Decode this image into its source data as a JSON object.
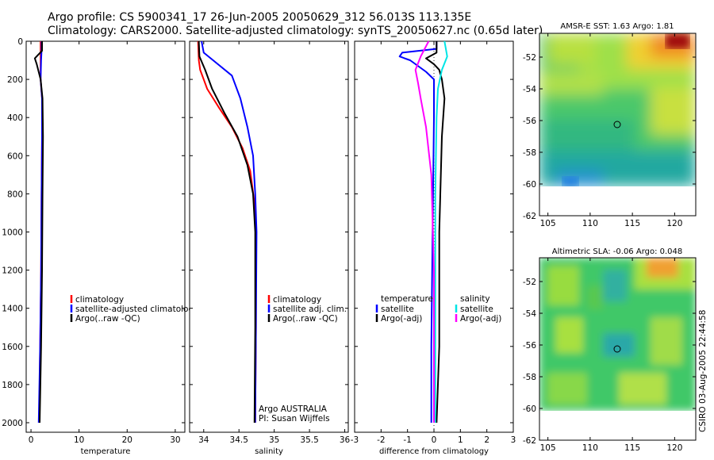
{
  "header": {
    "line1": "Argo profile: CS 5900341_17 26-Jun-2005 20050629_312 56.013S 113.135E",
    "line2": "Climatology: CARS2000. Satellite-adjusted climatology: synTS_20050627.nc (0.65d later)"
  },
  "footer": {
    "stamp": "CSIRO 03-Aug-2005 22:44:58",
    "institution": "Argo AUSTRALIA",
    "pi": "PI: Susan Wijffels"
  },
  "colors": {
    "red": "#ff0000",
    "blue": "#0000ff",
    "black": "#000000",
    "cyan": "#00e5e5",
    "magenta": "#ff00ff"
  },
  "chart_data": [
    {
      "type": "line",
      "id": "temperature",
      "xlabel": "temperature",
      "xlim": [
        -1,
        32
      ],
      "ylim": [
        0,
        2050
      ],
      "xticks": [
        0,
        10,
        20,
        30
      ],
      "yticks": [
        0,
        200,
        400,
        600,
        800,
        1000,
        1200,
        1400,
        1600,
        1800,
        2000
      ],
      "legend": [
        "climatology",
        "satellite-adjusted climatology",
        "Argo(..raw -QC)"
      ],
      "series": [
        {
          "name": "climatology",
          "color": "#ff0000",
          "points": [
            [
              2.0,
              0
            ],
            [
              2.0,
              100
            ],
            [
              2.0,
              200
            ],
            [
              2.3,
              300
            ],
            [
              2.3,
              500
            ],
            [
              2.2,
              800
            ],
            [
              2.1,
              1200
            ],
            [
              1.9,
              1600
            ],
            [
              1.7,
              2000
            ]
          ]
        },
        {
          "name": "satellite-adjusted climatology",
          "color": "#0000ff",
          "points": [
            [
              2.2,
              0
            ],
            [
              2.2,
              50
            ],
            [
              2.1,
              100
            ],
            [
              2.0,
              200
            ],
            [
              2.3,
              300
            ],
            [
              2.3,
              500
            ],
            [
              2.2,
              800
            ],
            [
              2.1,
              1200
            ],
            [
              1.9,
              1600
            ],
            [
              1.6,
              2000
            ]
          ]
        },
        {
          "name": "Argo(..raw -QC)",
          "color": "#000000",
          "points": [
            [
              2.3,
              0
            ],
            [
              2.3,
              50
            ],
            [
              0.8,
              90
            ],
            [
              1.2,
              120
            ],
            [
              2.0,
              200
            ],
            [
              2.4,
              300
            ],
            [
              2.5,
              500
            ],
            [
              2.4,
              800
            ],
            [
              2.3,
              1200
            ],
            [
              2.1,
              1600
            ],
            [
              1.8,
              2000
            ]
          ]
        }
      ]
    },
    {
      "type": "line",
      "id": "salinity",
      "xlabel": "salinity",
      "xlim": [
        33.8,
        36.05
      ],
      "ylim": [
        0,
        2050
      ],
      "xticks": [
        34,
        34.5,
        35,
        35.5,
        36
      ],
      "yticks": [
        0,
        200,
        400,
        600,
        800,
        1000,
        1200,
        1400,
        1600,
        1800,
        2000
      ],
      "legend": [
        "climatology",
        "satellite adj. clim.",
        "Argo(..raw -QC)"
      ],
      "series": [
        {
          "name": "climatology",
          "color": "#ff0000",
          "points": [
            [
              33.92,
              0
            ],
            [
              33.93,
              100
            ],
            [
              33.95,
              150
            ],
            [
              34.05,
              250
            ],
            [
              34.22,
              350
            ],
            [
              34.4,
              450
            ],
            [
              34.55,
              560
            ],
            [
              34.66,
              680
            ],
            [
              34.72,
              850
            ],
            [
              34.74,
              1000
            ],
            [
              34.74,
              1500
            ],
            [
              34.73,
              2000
            ]
          ]
        },
        {
          "name": "satellite adj. clim.",
          "color": "#0000ff",
          "points": [
            [
              33.97,
              0
            ],
            [
              34.0,
              60
            ],
            [
              34.2,
              120
            ],
            [
              34.4,
              180
            ],
            [
              34.52,
              300
            ],
            [
              34.62,
              450
            ],
            [
              34.7,
              600
            ],
            [
              34.73,
              800
            ],
            [
              34.75,
              1000
            ],
            [
              34.74,
              1500
            ],
            [
              34.73,
              2000
            ]
          ]
        },
        {
          "name": "Argo(..raw -QC)",
          "color": "#000000",
          "points": [
            [
              33.93,
              0
            ],
            [
              33.94,
              80
            ],
            [
              34.02,
              150
            ],
            [
              34.12,
              250
            ],
            [
              34.3,
              380
            ],
            [
              34.48,
              500
            ],
            [
              34.62,
              650
            ],
            [
              34.7,
              800
            ],
            [
              34.73,
              1000
            ],
            [
              34.73,
              1500
            ],
            [
              34.72,
              2000
            ]
          ]
        }
      ]
    },
    {
      "type": "line",
      "id": "difference",
      "xlabel": "difference from climatology",
      "xlim": [
        -3,
        3
      ],
      "ylim": [
        0,
        2050
      ],
      "xticks": [
        -3,
        -2,
        -1,
        0,
        1,
        2,
        3
      ],
      "yticks": [
        0,
        200,
        400,
        600,
        800,
        1000,
        1200,
        1400,
        1600,
        1800,
        2000
      ],
      "legend_left_header": "temperature",
      "legend_right_header": "salinity",
      "legend": [
        "satellite",
        "Argo(-adj)",
        "satellite",
        "Argo(-adj)"
      ],
      "series": [
        {
          "name": "temperature satellite",
          "color": "#0000ff",
          "points": [
            [
              0.1,
              0
            ],
            [
              0.1,
              40
            ],
            [
              -1.2,
              60
            ],
            [
              -1.3,
              80
            ],
            [
              -0.9,
              100
            ],
            [
              -0.3,
              160
            ],
            [
              0.0,
              200
            ],
            [
              0.0,
              400
            ],
            [
              -0.05,
              1000
            ],
            [
              -0.1,
              1600
            ],
            [
              -0.1,
              2000
            ]
          ]
        },
        {
          "name": "temperature Argo(-adj)",
          "color": "#000000",
          "points": [
            [
              0.1,
              0
            ],
            [
              0.1,
              60
            ],
            [
              -0.3,
              90
            ],
            [
              0.0,
              120
            ],
            [
              0.2,
              150
            ],
            [
              0.3,
              200
            ],
            [
              0.4,
              300
            ],
            [
              0.3,
              500
            ],
            [
              0.2,
              1000
            ],
            [
              0.2,
              1600
            ],
            [
              0.1,
              2000
            ]
          ]
        },
        {
          "name": "salinity satellite",
          "color": "#00e5e5",
          "points": [
            [
              0.4,
              0
            ],
            [
              0.5,
              80
            ],
            [
              0.3,
              150
            ],
            [
              0.15,
              250
            ],
            [
              0.1,
              400
            ],
            [
              0.05,
              800
            ],
            [
              0.05,
              1500
            ],
            [
              0.05,
              2000
            ]
          ]
        },
        {
          "name": "salinity Argo(-adj)",
          "color": "#ff00ff",
          "points": [
            [
              -0.2,
              0
            ],
            [
              -0.5,
              80
            ],
            [
              -0.7,
              150
            ],
            [
              -0.6,
              220
            ],
            [
              -0.5,
              300
            ],
            [
              -0.3,
              450
            ],
            [
              -0.1,
              700
            ],
            [
              0.0,
              1200
            ],
            [
              0.0,
              2000
            ]
          ]
        }
      ]
    },
    {
      "type": "heatmap",
      "id": "sst-map",
      "title": "AMSR-E SST: 1.63 Argo: 1.81",
      "xlim": [
        104,
        122.5
      ],
      "ylim": [
        -62,
        -50.5
      ],
      "xticks": [
        105,
        110,
        115,
        120
      ],
      "yticks": [
        -52,
        -54,
        -56,
        -58,
        -60,
        -62
      ],
      "marker": [
        113.135,
        -56.013
      ]
    },
    {
      "type": "heatmap",
      "id": "sla-map",
      "title": "Altimetric SLA: -0.06 Argo: 0.048",
      "xlim": [
        104,
        122.5
      ],
      "ylim": [
        -62,
        -50.5
      ],
      "xticks": [
        105,
        110,
        115,
        120
      ],
      "yticks": [
        -52,
        -54,
        -56,
        -58,
        -60,
        -62
      ],
      "marker": [
        113.135,
        -56.013
      ]
    }
  ]
}
